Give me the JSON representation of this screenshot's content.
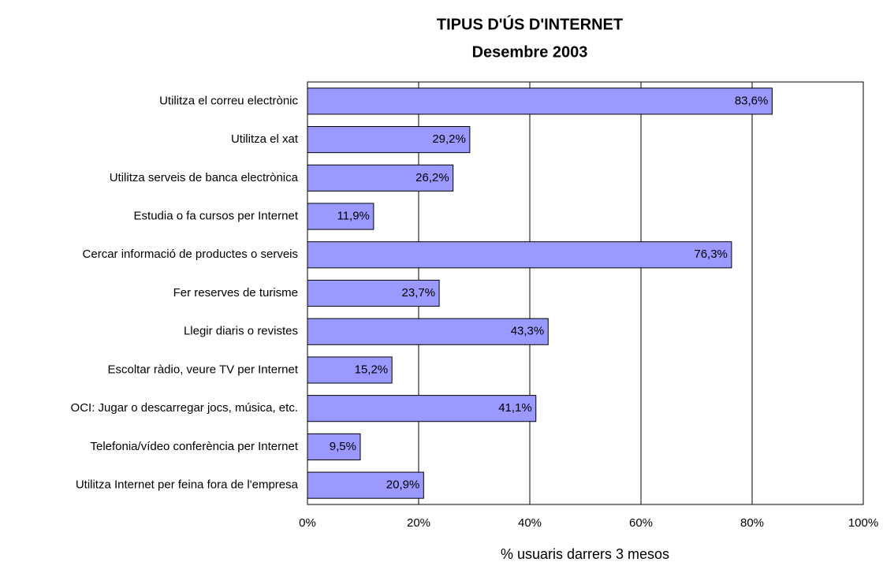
{
  "chart_data": {
    "type": "hbar",
    "title": "TIPUS D'ÚS D'INTERNET",
    "subtitle": "Desembre 2003",
    "x_label": "% usuaris darrers 3 mesos",
    "categories": [
      "Utilitza el correu electrònic",
      "Utilitza el xat",
      "Utilitza serveis de banca electrònica",
      "Estudia o fa cursos per Internet",
      "Cercar informació de productes o serveis",
      "Fer reserves de turisme",
      "Llegir diaris o revistes",
      "Escoltar ràdio, veure TV per Internet",
      "OCI: Jugar o descarregar jocs, música, etc.",
      "Telefonia/vídeo conferència per Internet",
      "Utilitza Internet per feina fora de l'empresa"
    ],
    "values": [
      83.6,
      29.2,
      26.2,
      11.9,
      76.3,
      23.7,
      43.3,
      15.2,
      41.1,
      9.5,
      20.9
    ],
    "value_labels": [
      "83,6%",
      "29,2%",
      "26,2%",
      "11,9%",
      "76,3%",
      "23,7%",
      "43,3%",
      "15,2%",
      "41,1%",
      "9,5%",
      "20,9%"
    ],
    "color": "#9999ff",
    "xlim": [
      0,
      100
    ],
    "xticks": [
      {
        "value": 0,
        "label": "0%"
      },
      {
        "value": 20,
        "label": "20%"
      },
      {
        "value": 40,
        "label": "40%"
      },
      {
        "value": 60,
        "label": "60%"
      },
      {
        "value": 80,
        "label": "80%"
      },
      {
        "value": 100,
        "label": "100%"
      }
    ],
    "grid": true
  }
}
